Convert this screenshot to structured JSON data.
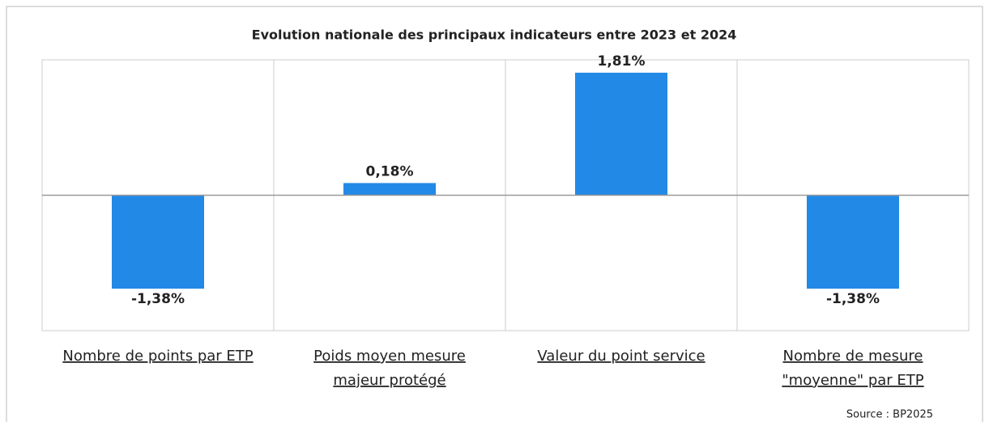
{
  "chart_data": {
    "type": "bar",
    "title": "Evolution nationale des principaux indicateurs entre 2023 et 2024",
    "categories": [
      [
        "Nombre de points par  ETP"
      ],
      [
        "Poids moyen  mesure",
        "majeur protégé"
      ],
      [
        "Valeur du point service"
      ],
      [
        "Nombre de mesure",
        "\"moyenne\" par ETP"
      ]
    ],
    "values": [
      -1.38,
      0.18,
      1.81,
      -1.38
    ],
    "value_labels": [
      "-1,38%",
      "0,18%",
      "1,81%",
      "-1,38%"
    ],
    "color": "#2389e6",
    "ylim": [
      -2,
      2
    ],
    "source": "Source : BP2025"
  }
}
